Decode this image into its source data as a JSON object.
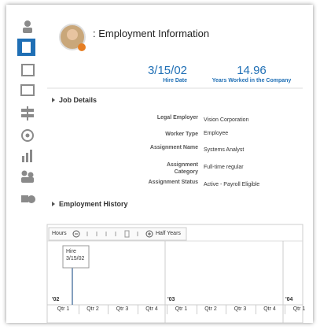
{
  "header": {
    "title": ": Employment Information"
  },
  "summary": [
    {
      "value": "3/15/02",
      "label": "Hire Date"
    },
    {
      "value": 14.96,
      "label": "Years Worked in the Company"
    }
  ],
  "job_details": {
    "title": "Job Details",
    "rows": [
      {
        "label": "Legal Employer",
        "value": "Vision Corporation"
      },
      {
        "label": "Worker Type",
        "value": "Employee"
      },
      {
        "label": "Assignment Name",
        "value": "Systems Analyst"
      },
      {
        "label": "Assignment Category",
        "value": "Full-time regular"
      },
      {
        "label": "Assignment Status",
        "value": "Active - Payroll Eligible"
      }
    ]
  },
  "employment_history": {
    "title": "Employment History",
    "toolbar": {
      "start": "Hours",
      "end": "Half Years"
    },
    "event": {
      "label": "Hire",
      "date": "3/15/02"
    },
    "years": [
      "'02",
      "'03",
      "'04"
    ],
    "quarters": [
      "Qtr 1",
      "Qtr 2",
      "Qtr 3",
      "Qtr 4",
      "Qtr 1",
      "Qtr 2",
      "Qtr 3",
      "Qtr 4",
      "Qtr 1"
    ]
  }
}
